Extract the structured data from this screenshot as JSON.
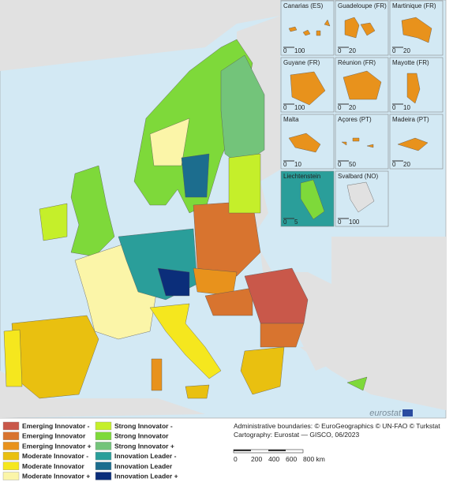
{
  "map": {
    "insets": [
      {
        "title": "Canarias (ES)",
        "scale": [
          "0",
          "100"
        ]
      },
      {
        "title": "Guadeloupe (FR)",
        "scale": [
          "0",
          "20"
        ]
      },
      {
        "title": "Martinique (FR)",
        "scale": [
          "0",
          "20"
        ]
      },
      {
        "title": "Guyane (FR)",
        "scale": [
          "0",
          "100"
        ]
      },
      {
        "title": "Réunion (FR)",
        "scale": [
          "0",
          "20"
        ]
      },
      {
        "title": "Mayotte (FR)",
        "scale": [
          "0",
          "10"
        ]
      },
      {
        "title": "Malta",
        "scale": [
          "0",
          "10"
        ]
      },
      {
        "title": "Açores (PT)",
        "scale": [
          "0",
          "50"
        ]
      },
      {
        "title": "Madeira (PT)",
        "scale": [
          "0",
          "20"
        ]
      },
      {
        "title": "Liechtenstein",
        "scale": [
          "0",
          "5"
        ]
      },
      {
        "title": "Svalbard (NO)",
        "scale": [
          "0",
          "100"
        ]
      }
    ],
    "logo": "eurostat",
    "legend": [
      {
        "label": "Emerging Innovator -",
        "color": "#c9584a"
      },
      {
        "label": "Emerging Innovator",
        "color": "#d8742f"
      },
      {
        "label": "Emerging Innovator +",
        "color": "#e8921c"
      },
      {
        "label": "Moderate Innovator -",
        "color": "#e9c010"
      },
      {
        "label": "Moderate Innovator",
        "color": "#f5e71e"
      },
      {
        "label": "Moderate Innovator +",
        "color": "#fbf5a8"
      },
      {
        "label": "Strong Innovator -",
        "color": "#c5ef2a"
      },
      {
        "label": "Strong Innovator",
        "color": "#7ed93a"
      },
      {
        "label": "Strong Innovator +",
        "color": "#73c47a"
      },
      {
        "label": "Innovation Leader -",
        "color": "#2a9e9a"
      },
      {
        "label": "Innovation Leader",
        "color": "#1c6d8e"
      },
      {
        "label": "Innovation Leader +",
        "color": "#0b2e7a"
      }
    ],
    "attribution": [
      "Administrative boundaries: © EuroGeographics © UN-FAO © Turkstat",
      "Cartography: Eurostat — GISCO, 06/2023"
    ],
    "scale_bar": [
      "0",
      "200",
      "400",
      "600",
      "800 km"
    ]
  }
}
